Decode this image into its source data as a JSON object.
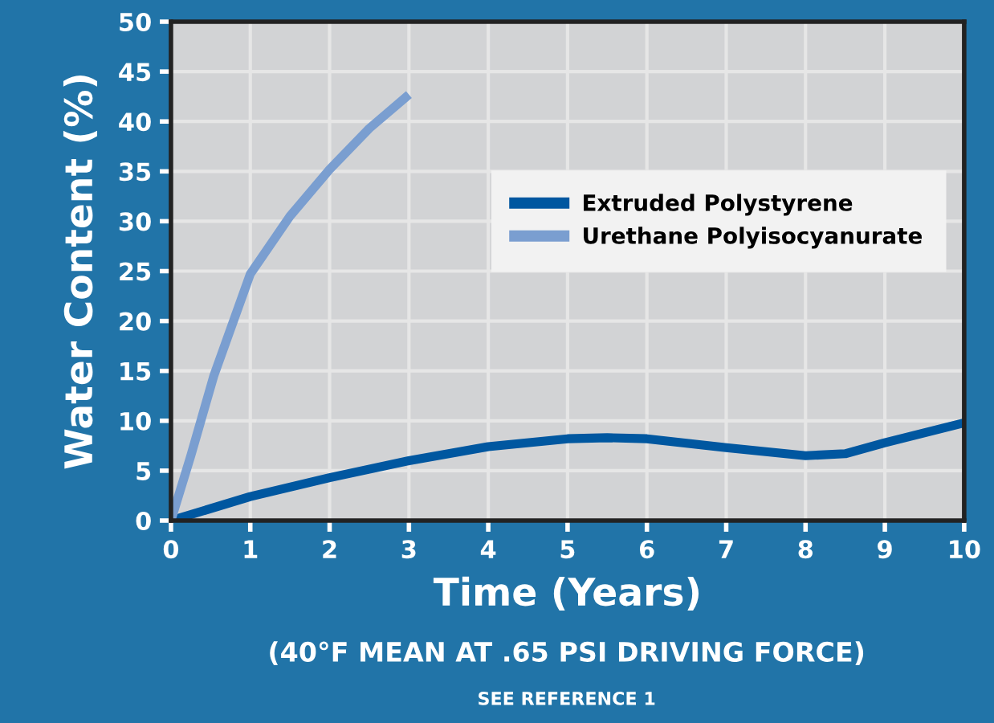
{
  "chart_data": {
    "type": "line",
    "xlabel": "Time (Years)",
    "ylabel": "Water Content (%)",
    "annotations": [
      "(40°F MEAN AT .65 PSI DRIVING FORCE)",
      "SEE REFERENCE 1"
    ],
    "xlim": [
      0,
      10
    ],
    "ylim": [
      0,
      50
    ],
    "xticks": [
      0,
      1,
      2,
      3,
      4,
      5,
      6,
      7,
      8,
      9,
      10
    ],
    "yticks": [
      0,
      5,
      10,
      15,
      20,
      25,
      30,
      35,
      40,
      45,
      50
    ],
    "grid": true,
    "legend": "right",
    "line_style": "solid",
    "marker": "none",
    "series": [
      {
        "name": "Extruded Polystyrene",
        "color": "#0057a0",
        "x": [
          0,
          1,
          2,
          3,
          4,
          5,
          5.5,
          6,
          7,
          8,
          8.5,
          9,
          10
        ],
        "values": [
          0,
          2.4,
          4.3,
          6.0,
          7.4,
          8.2,
          8.3,
          8.2,
          7.3,
          6.5,
          6.7,
          7.8,
          9.8
        ]
      },
      {
        "name": "Urethane Polyisocyanurate",
        "color": "#7a9ed0",
        "x": [
          0,
          0.25,
          0.54,
          1,
          1.5,
          2,
          2.5,
          3
        ],
        "values": [
          0,
          6.5,
          14.5,
          24.7,
          30.5,
          35.2,
          39.3,
          42.7
        ]
      }
    ]
  }
}
